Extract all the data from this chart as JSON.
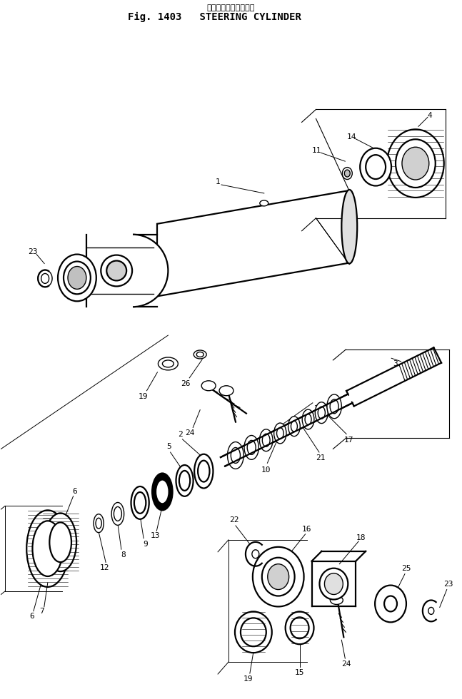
{
  "title_japanese": "ステアリングシリンダ",
  "title_english": "Fig. 1403   STEERING CYLINDER",
  "background_color": "#ffffff",
  "line_color": "#000000",
  "fig_width": 6.47,
  "fig_height": 9.8,
  "dpi": 100
}
